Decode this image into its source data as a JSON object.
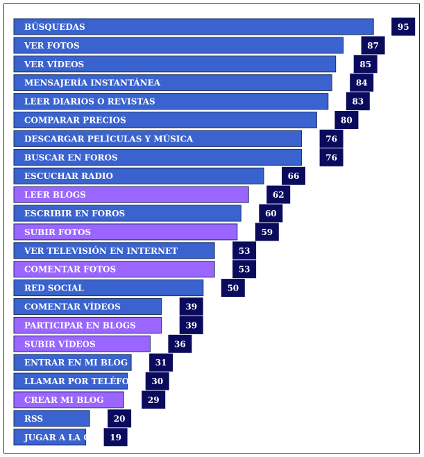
{
  "colors": {
    "bar_default": "#3a63cf",
    "bar_highlight": "#9a66ff",
    "bar_stroke": "#1f2f5a",
    "value_box": "#0b0b5e",
    "frame": "#24246b"
  },
  "chart_data": {
    "type": "bar",
    "orientation": "horizontal",
    "title": "",
    "xlabel": "",
    "ylabel": "",
    "xlim": [
      0,
      100
    ],
    "grid": false,
    "legend": "none",
    "categories": [
      "BÚSQUEDAS",
      "VER FOTOS",
      "VER VÍDEOS",
      "MENSAJERÍA INSTANTÁNEA",
      "LEER DIARIOS O REVISTAS",
      "COMPARAR PRECIOS",
      "DESCARGAR PELÍCULAS Y MÚSICA",
      "BUSCAR EN FOROS",
      "ESCUCHAR RADIO",
      "LEER BLOGS",
      "ESCRIBIR EN FOROS",
      "SUBIR FOTOS",
      "VER TELEVISIÓN EN INTERNET",
      "COMENTAR FOTOS",
      "RED SOCIAL",
      "COMENTAR VÍDEOS",
      "PARTICIPAR EN BLOGS",
      "SUBIR VÍDEOS",
      "ENTRAR EN MI BLOG",
      "LLAMAR POR TELÉFONO",
      "CREAR MI BLOG",
      "RSS",
      "JUGAR A LA CONSOLA"
    ],
    "values": [
      95,
      87,
      85,
      84,
      83,
      80,
      76,
      76,
      66,
      62,
      60,
      59,
      53,
      53,
      50,
      39,
      39,
      36,
      31,
      30,
      29,
      20,
      19
    ],
    "highlighted": [
      false,
      false,
      false,
      false,
      false,
      false,
      false,
      false,
      false,
      true,
      false,
      true,
      false,
      true,
      false,
      false,
      true,
      true,
      false,
      false,
      true,
      false,
      false
    ]
  }
}
